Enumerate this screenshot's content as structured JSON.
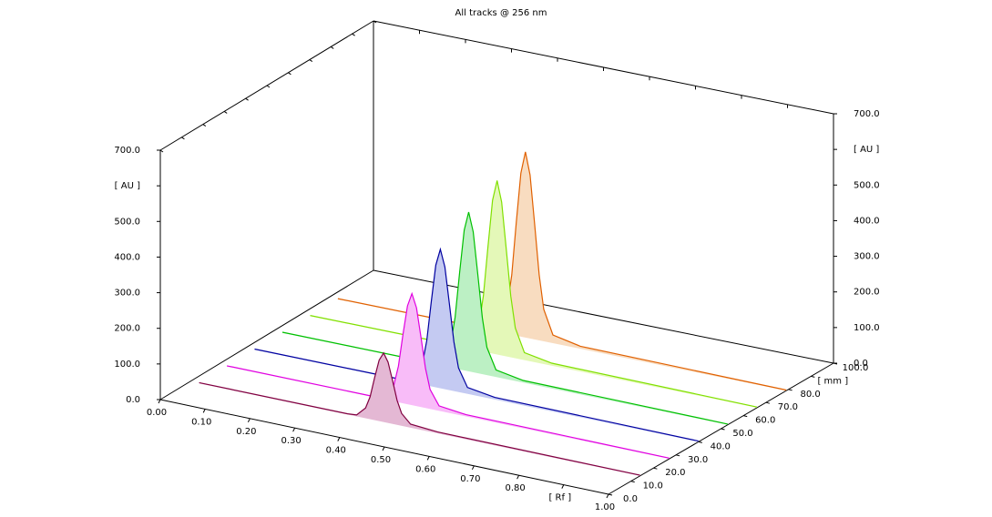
{
  "chart_data": {
    "type": "chromatogram-3d",
    "title": "All tracks @ 256 nm",
    "x": [
      0.02,
      0.35,
      0.37,
      0.39,
      0.4,
      0.41,
      0.42,
      0.43,
      0.44,
      0.45,
      0.46,
      0.47,
      0.49,
      0.55,
      1.0
    ],
    "xlim": [
      0,
      1
    ],
    "xticks": [
      {
        "value": 0,
        "label": "0.00"
      },
      {
        "value": 0.1,
        "label": "0.10"
      },
      {
        "value": 0.2,
        "label": "0.20"
      },
      {
        "value": 0.3,
        "label": "0.30"
      },
      {
        "value": 0.4,
        "label": "0.40"
      },
      {
        "value": 0.5,
        "label": "0.50"
      },
      {
        "value": 0.6,
        "label": "0.60"
      },
      {
        "value": 0.7,
        "label": "0.70"
      },
      {
        "value": 0.8,
        "label": "0.80"
      },
      {
        "value": 0.9,
        "label": "[ Rf ]"
      },
      {
        "value": 1,
        "label": "1.00"
      }
    ],
    "zlim": [
      0,
      100
    ],
    "zticks": [
      {
        "value": 0,
        "label": "0.0"
      },
      {
        "value": 10,
        "label": "10.0"
      },
      {
        "value": 20,
        "label": "20.0"
      },
      {
        "value": 30,
        "label": "30.0"
      },
      {
        "value": 40,
        "label": "40.0"
      },
      {
        "value": 50,
        "label": "50.0"
      },
      {
        "value": 60,
        "label": "60.0"
      },
      {
        "value": 70,
        "label": "70.0"
      },
      {
        "value": 80,
        "label": "80.0"
      },
      {
        "value": 90,
        "label": "[ mm ]"
      },
      {
        "value": 100,
        "label": "100.0"
      }
    ],
    "ylim": [
      0,
      700
    ],
    "yticks": [
      {
        "value": 0,
        "label": "0.0"
      },
      {
        "value": 100,
        "label": "100.0"
      },
      {
        "value": 200,
        "label": "200.0"
      },
      {
        "value": 300,
        "label": "300.0"
      },
      {
        "value": 400,
        "label": "400.0"
      },
      {
        "value": 500,
        "label": "500.0"
      },
      {
        "value": 600,
        "label": "[ AU ]"
      },
      {
        "value": 700,
        "label": "700.0"
      }
    ],
    "y2lim": [
      0,
      700
    ],
    "y2ticks": [
      {
        "value": 0,
        "label": "0.0"
      },
      {
        "value": 100,
        "label": "100.0"
      },
      {
        "value": 200,
        "label": "200.0"
      },
      {
        "value": 300,
        "label": "300.0"
      },
      {
        "value": 400,
        "label": "400.0"
      },
      {
        "value": 500,
        "label": "500.0"
      },
      {
        "value": 600,
        "label": "[ AU ]"
      },
      {
        "value": 700,
        "label": "700.0"
      }
    ],
    "series": [
      {
        "color": "#800040",
        "fill": "#e4b8d4",
        "position": 14,
        "values": [
          2,
          2,
          4,
          29,
          63,
          119,
          171,
          194,
          171,
          121,
          69,
          35,
          10,
          4,
          2
        ]
      },
      {
        "color": "#e000e0",
        "fill": "#f8bcf8",
        "position": 27,
        "values": [
          2,
          2,
          5,
          46,
          102,
          192,
          276,
          313,
          276,
          195,
          111,
          55,
          14,
          5,
          2
        ]
      },
      {
        "color": "#0000a0",
        "fill": "#c4caf2",
        "position": 40,
        "values": [
          2,
          2,
          6,
          56,
          126,
          239,
          343,
          390,
          343,
          243,
          138,
          68,
          18,
          6,
          2
        ]
      },
      {
        "color": "#00c000",
        "fill": "#bcf0c4",
        "position": 53,
        "values": [
          2,
          2,
          6,
          64,
          144,
          273,
          394,
          447,
          394,
          278,
          158,
          78,
          20,
          6,
          2
        ]
      },
      {
        "color": "#80e000",
        "fill": "#e4f8b8",
        "position": 66,
        "values": [
          2,
          2,
          7,
          70,
          158,
          298,
          430,
          488,
          430,
          303,
          172,
          85,
          21,
          7,
          2
        ]
      },
      {
        "color": "#e06000",
        "fill": "#f8dcc0",
        "position": 79,
        "values": [
          2,
          2,
          7,
          75,
          168,
          319,
          459,
          521,
          459,
          324,
          184,
          90,
          23,
          7,
          2
        ]
      }
    ]
  }
}
